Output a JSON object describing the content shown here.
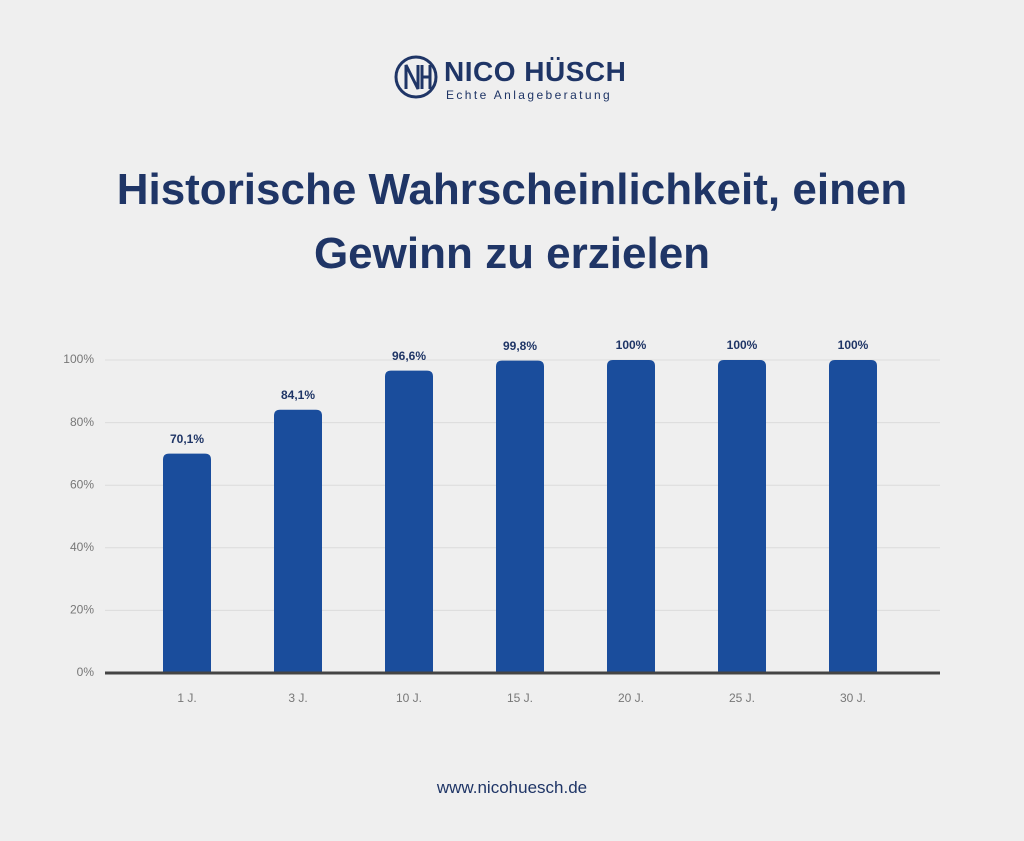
{
  "header": {
    "brand": "NICO HÜSCH",
    "tagline": "Echte Anlageberatung"
  },
  "chart_data": {
    "type": "bar",
    "title": "Historische Wahrscheinlichkeit, einen Gewinn zu erzielen",
    "categories": [
      "1 J.",
      "3 J.",
      "10 J.",
      "15 J.",
      "20 J.",
      "25 J.",
      "30 J."
    ],
    "values": [
      70.1,
      84.1,
      96.6,
      99.8,
      100,
      100,
      100
    ],
    "value_labels": [
      "70,1%",
      "84,1%",
      "96,6%",
      "99,8%",
      "100%",
      "100%",
      "100%"
    ],
    "color": "#1a4d9c",
    "ylim": [
      0,
      100
    ],
    "yticks": [
      {
        "value": 0,
        "label": "0%"
      },
      {
        "value": 20,
        "label": "20%"
      },
      {
        "value": 40,
        "label": "40%"
      },
      {
        "value": 60,
        "label": "60%"
      },
      {
        "value": 80,
        "label": "80%"
      },
      {
        "value": 100,
        "label": "100%"
      }
    ],
    "grid": true
  },
  "footer": {
    "url": "www.nicohuesch.de"
  }
}
